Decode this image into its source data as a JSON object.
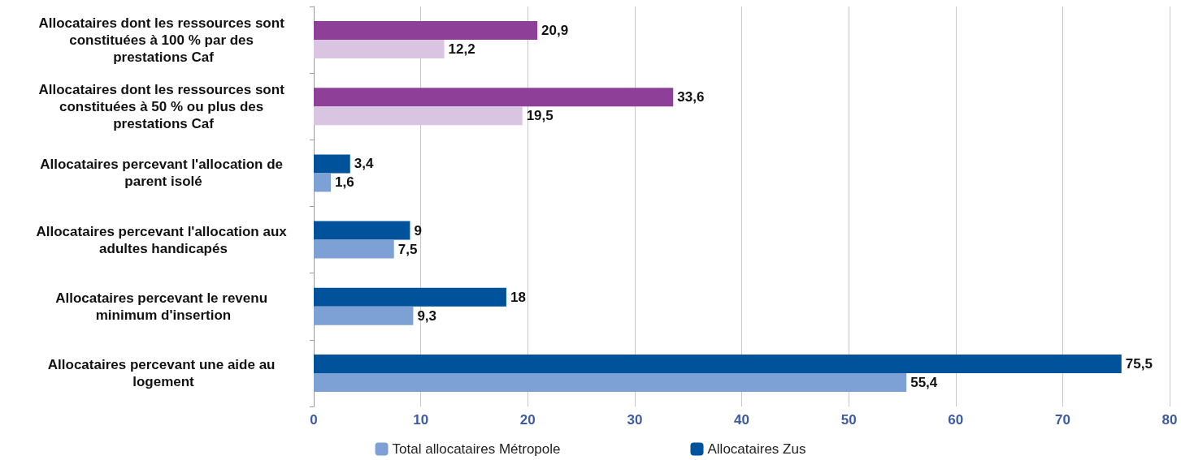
{
  "chart_data": {
    "type": "bar",
    "orientation": "horizontal",
    "categories": [
      "Allocataires dont les ressources sont constituées à 100 % par des prestations Caf",
      "Allocataires dont les ressources sont constituées à 50 % ou plus des prestations Caf",
      "Allocataires percevant l'allocation de parent isolé",
      "Allocataires percevant l'allocation aux adultes handicapés",
      "Allocataires percevant le revenu minimum d'insertion",
      "Allocataires percevant une aide au logement"
    ],
    "series": [
      {
        "name": "Allocataires Zus",
        "color": "#00529b",
        "colors": [
          "#8e3f98",
          "#8e3f98",
          "#00529b",
          "#00529b",
          "#00529b",
          "#00529b"
        ],
        "values": [
          20.9,
          33.6,
          3.4,
          9,
          18,
          75.5
        ],
        "value_labels": [
          "20,9",
          "33,6",
          "3,4",
          "9",
          "18",
          "75,5"
        ]
      },
      {
        "name": "Total allocataires Métropole",
        "color": "#7ea1d5",
        "colors": [
          "#d9c4e1",
          "#d9c4e1",
          "#7ea1d5",
          "#7ea1d5",
          "#7ea1d5",
          "#7ea1d5"
        ],
        "values": [
          12.2,
          19.5,
          1.6,
          7.5,
          9.3,
          55.4
        ],
        "value_labels": [
          "12,2",
          "19,5",
          "1,6",
          "7,5",
          "9,3",
          "55,4"
        ]
      }
    ],
    "xlim": [
      0,
      80
    ],
    "xticks": [
      0,
      10,
      20,
      30,
      40,
      50,
      60,
      70,
      80
    ],
    "grid": "x",
    "legend": "bottom"
  }
}
